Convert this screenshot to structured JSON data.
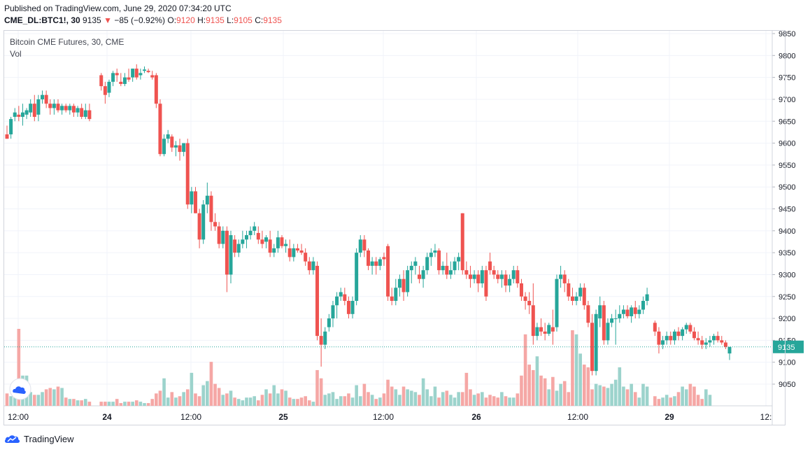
{
  "header": {
    "published": "Published on TradingView.com, June 29, 2020 07:34:20 UTC"
  },
  "quote": {
    "symbol": "CME_DL:BTC1!, 30",
    "last": "9135",
    "change": "−85 (−0.92%)",
    "o_label": "O:",
    "o": "9120",
    "h_label": "H:",
    "h": "9135",
    "l_label": "L:",
    "l": "9105",
    "c_label": "C:",
    "c": "9135"
  },
  "legend": {
    "title": "Bitcoin CME Futures, 30, CME",
    "volume": "Vol"
  },
  "footer": {
    "brand": "TradingView",
    "logo_icon": "tradingview-cloud-icon"
  },
  "colors": {
    "up": "#26a69a",
    "down": "#ef5350",
    "up_vol": "#9cd3cc",
    "down_vol": "#f5a7a5",
    "price_line": "#26a69a"
  },
  "chart_data": {
    "type": "candlestick",
    "title": "Bitcoin CME Futures, 30, CME",
    "y_ticks": [
      9050,
      9100,
      9150,
      9200,
      9250,
      9300,
      9350,
      9400,
      9450,
      9500,
      9550,
      9600,
      9650,
      9700,
      9750,
      9800,
      9850
    ],
    "x_ticks": [
      "12:00",
      "24",
      "12:00",
      "25",
      "12:00",
      "26",
      "12:00",
      "29",
      "12:"
    ],
    "last_price": "9135",
    "grid": true,
    "candles": [
      [
        9620,
        9640,
        9610,
        9610
      ],
      [
        9620,
        9660,
        9610,
        9655
      ],
      [
        9660,
        9680,
        9650,
        9670
      ],
      [
        9665,
        9685,
        9650,
        9660
      ],
      [
        9660,
        9690,
        9640,
        9670
      ],
      [
        9665,
        9680,
        9655,
        9675
      ],
      [
        9670,
        9700,
        9660,
        9690
      ],
      [
        9690,
        9710,
        9650,
        9660
      ],
      [
        9665,
        9710,
        9650,
        9700
      ],
      [
        9700,
        9720,
        9690,
        9710
      ],
      [
        9710,
        9720,
        9680,
        9690
      ],
      [
        9690,
        9700,
        9665,
        9680
      ],
      [
        9680,
        9700,
        9665,
        9690
      ],
      [
        9690,
        9700,
        9670,
        9675
      ],
      [
        9675,
        9690,
        9665,
        9685
      ],
      [
        9685,
        9690,
        9670,
        9675
      ],
      [
        9675,
        9690,
        9665,
        9685
      ],
      [
        9685,
        9690,
        9660,
        9670
      ],
      [
        9670,
        9685,
        9660,
        9680
      ],
      [
        9680,
        9690,
        9655,
        9660
      ],
      [
        9660,
        9690,
        9655,
        9675
      ],
      [
        9675,
        9690,
        9650,
        9655
      ],
      [
        null,
        null,
        null,
        null
      ],
      [
        null,
        null,
        null,
        null
      ],
      [
        9755,
        9760,
        9720,
        9730
      ],
      [
        9730,
        9740,
        9690,
        9710
      ],
      [
        9715,
        9745,
        9705,
        9740
      ],
      [
        9740,
        9765,
        9730,
        9760
      ],
      [
        9760,
        9770,
        9740,
        9755
      ],
      [
        9740,
        9760,
        9730,
        9735
      ],
      [
        9735,
        9760,
        9730,
        9750
      ],
      [
        9750,
        9770,
        9740,
        9745
      ],
      [
        9750,
        9770,
        9740,
        9770
      ],
      [
        9770,
        9780,
        9745,
        9750
      ],
      [
        9755,
        9770,
        9745,
        9760
      ],
      [
        9765,
        9775,
        9760,
        9768
      ],
      [
        9765,
        9770,
        9760,
        9762
      ],
      [
        9755,
        9765,
        9745,
        9750
      ],
      [
        9755,
        9760,
        9680,
        9690
      ],
      [
        9690,
        9700,
        9570,
        9575
      ],
      [
        9575,
        9620,
        9570,
        9610
      ],
      [
        9610,
        9630,
        9600,
        9620
      ],
      [
        9615,
        9620,
        9580,
        9590
      ],
      [
        9590,
        9605,
        9570,
        9595
      ],
      [
        9595,
        9610,
        9560,
        9580
      ],
      [
        9580,
        9600,
        9570,
        9600
      ],
      [
        9600,
        9610,
        9450,
        9460
      ],
      [
        9460,
        9500,
        9440,
        9490
      ],
      [
        9490,
        9500,
        9440,
        9440
      ],
      [
        9440,
        9450,
        9360,
        9380
      ],
      [
        9380,
        9470,
        9370,
        9460
      ],
      [
        9460,
        9510,
        9440,
        9480
      ],
      [
        9480,
        9490,
        9400,
        9420
      ],
      [
        9420,
        9440,
        9400,
        9410
      ],
      [
        9410,
        9420,
        9360,
        9370
      ],
      [
        9370,
        9410,
        9360,
        9400
      ],
      [
        9400,
        9410,
        9260,
        9300
      ],
      [
        9300,
        9400,
        9280,
        9390
      ],
      [
        9380,
        9390,
        9340,
        9350
      ],
      [
        9350,
        9380,
        9340,
        9370
      ],
      [
        9370,
        9400,
        9360,
        9380
      ],
      [
        9380,
        9400,
        9360,
        9390
      ],
      [
        9390,
        9410,
        9380,
        9400
      ],
      [
        9400,
        9420,
        9390,
        9410
      ],
      [
        9395,
        9410,
        9370,
        9380
      ],
      [
        9380,
        9400,
        9360,
        9370
      ],
      [
        9375,
        9390,
        9360,
        9385
      ],
      [
        9380,
        9400,
        9340,
        9350
      ],
      [
        9350,
        9370,
        9340,
        9360
      ],
      [
        9360,
        9400,
        9350,
        9385
      ],
      [
        9385,
        9390,
        9360,
        9365
      ],
      [
        9365,
        9380,
        9350,
        9370
      ],
      [
        9360,
        9380,
        9330,
        9340
      ],
      [
        9340,
        9370,
        9330,
        9360
      ],
      [
        9360,
        9370,
        9350,
        9355
      ],
      [
        9355,
        9370,
        9345,
        9350
      ],
      [
        9350,
        9360,
        9320,
        9330
      ],
      [
        9330,
        9340,
        9300,
        9310
      ],
      [
        9310,
        9340,
        9300,
        9330
      ],
      [
        9320,
        9330,
        9150,
        9160
      ],
      [
        9160,
        9200,
        9090,
        9140
      ],
      [
        9140,
        9180,
        9130,
        9170
      ],
      [
        9180,
        9210,
        9170,
        9200
      ],
      [
        9200,
        9240,
        9180,
        9230
      ],
      [
        9230,
        9260,
        9200,
        9250
      ],
      [
        9250,
        9270,
        9240,
        9260
      ],
      [
        9255,
        9270,
        9230,
        9240
      ],
      [
        9240,
        9250,
        9200,
        9210
      ],
      [
        9210,
        9250,
        9200,
        9240
      ],
      [
        9240,
        9360,
        9230,
        9350
      ],
      [
        9350,
        9390,
        9340,
        9380
      ],
      [
        9380,
        9390,
        9340,
        9355
      ],
      [
        9355,
        9360,
        9310,
        9320
      ],
      [
        9320,
        9340,
        9300,
        9330
      ],
      [
        9330,
        9340,
        9300,
        9320
      ],
      [
        9320,
        9340,
        9310,
        9335
      ],
      [
        9340,
        9350,
        9320,
        9335
      ],
      [
        9365,
        9370,
        9240,
        9250
      ],
      [
        9250,
        9270,
        9230,
        9240
      ],
      [
        9240,
        9290,
        9230,
        9270
      ],
      [
        9270,
        9300,
        9250,
        9290
      ],
      [
        9290,
        9310,
        9240,
        9260
      ],
      [
        9260,
        9320,
        9250,
        9310
      ],
      [
        9310,
        9330,
        9280,
        9320
      ],
      [
        9320,
        9340,
        9300,
        9330
      ],
      [
        9300,
        9320,
        9280,
        9290
      ],
      [
        9290,
        9320,
        9270,
        9310
      ],
      [
        9310,
        9350,
        9300,
        9340
      ],
      [
        9340,
        9360,
        9320,
        9350
      ],
      [
        9350,
        9370,
        9340,
        9355
      ],
      [
        9355,
        9360,
        9300,
        9310
      ],
      [
        9310,
        9330,
        9300,
        9320
      ],
      [
        9320,
        9350,
        9290,
        9300
      ],
      [
        9300,
        9330,
        9290,
        9310
      ],
      [
        9310,
        9340,
        9300,
        9330
      ],
      [
        9330,
        9350,
        9310,
        9340
      ],
      [
        9440,
        9440,
        9300,
        9310
      ],
      [
        9310,
        9330,
        9290,
        9300
      ],
      [
        9300,
        9320,
        9270,
        9290
      ],
      [
        9290,
        9310,
        9280,
        9300
      ],
      [
        9300,
        9310,
        9260,
        9280
      ],
      [
        9280,
        9320,
        9270,
        9310
      ],
      [
        9310,
        9320,
        9240,
        9250
      ],
      [
        9330,
        9350,
        9300,
        9310
      ],
      [
        9310,
        9320,
        9290,
        9300
      ],
      [
        9300,
        9310,
        9280,
        9290
      ],
      [
        9290,
        9310,
        9270,
        9300
      ],
      [
        9300,
        9310,
        9260,
        9275
      ],
      [
        9275,
        9300,
        9260,
        9290
      ],
      [
        9290,
        9320,
        9280,
        9310
      ],
      [
        9310,
        9320,
        9270,
        9280
      ],
      [
        9280,
        9290,
        9240,
        9250
      ],
      [
        9250,
        9260,
        9220,
        9240
      ],
      [
        9240,
        9260,
        9210,
        9230
      ],
      [
        9230,
        9280,
        9140,
        9160
      ],
      [
        9160,
        9190,
        9150,
        9180
      ],
      [
        9180,
        9200,
        9160,
        9170
      ],
      [
        9170,
        9190,
        9150,
        9165
      ],
      [
        9165,
        9190,
        9160,
        9185
      ],
      [
        9180,
        9220,
        9140,
        9170
      ],
      [
        9180,
        9300,
        9170,
        9290
      ],
      [
        9290,
        9320,
        9270,
        9300
      ],
      [
        9300,
        9310,
        9260,
        9280
      ],
      [
        9280,
        9290,
        9240,
        9250
      ],
      [
        9250,
        9270,
        9230,
        9240
      ],
      [
        9240,
        9260,
        9230,
        9250
      ],
      [
        9250,
        9280,
        9240,
        9270
      ],
      [
        9270,
        9280,
        9220,
        9230
      ],
      [
        9230,
        9240,
        9180,
        9190
      ],
      [
        9190,
        9210,
        9070,
        9080
      ],
      [
        9080,
        9220,
        9070,
        9210
      ],
      [
        9200,
        9250,
        9180,
        9230
      ],
      [
        9230,
        9240,
        9140,
        9150
      ],
      [
        9150,
        9200,
        9140,
        9190
      ],
      [
        9190,
        9210,
        9180,
        9200
      ],
      [
        9200,
        9220,
        9140,
        9200
      ],
      [
        9200,
        9230,
        9190,
        9210
      ],
      [
        9210,
        9230,
        9200,
        9220
      ],
      [
        9220,
        9230,
        9200,
        9205
      ],
      [
        9205,
        9230,
        9190,
        9225
      ],
      [
        9225,
        9240,
        9200,
        9210
      ],
      [
        9210,
        9230,
        9200,
        9220
      ],
      [
        9220,
        9250,
        9210,
        9240
      ],
      [
        9240,
        9270,
        9230,
        9255
      ],
      [
        null,
        null,
        null,
        null
      ],
      [
        9190,
        9195,
        9160,
        9170
      ],
      [
        9170,
        9180,
        9120,
        9140
      ],
      [
        9140,
        9160,
        9130,
        9150
      ],
      [
        9150,
        9170,
        9140,
        9160
      ],
      [
        9160,
        9170,
        9140,
        9150
      ],
      [
        9150,
        9175,
        9140,
        9170
      ],
      [
        9170,
        9180,
        9150,
        9160
      ],
      [
        9160,
        9180,
        9150,
        9175
      ],
      [
        9175,
        9190,
        9165,
        9185
      ],
      [
        9185,
        9190,
        9165,
        9170
      ],
      [
        9170,
        9180,
        9150,
        9155
      ],
      [
        9155,
        9170,
        9140,
        9150
      ],
      [
        9150,
        9160,
        9130,
        9140
      ],
      [
        9140,
        9155,
        9130,
        9145
      ],
      [
        9145,
        9160,
        9135,
        9150
      ],
      [
        9150,
        9165,
        9140,
        9160
      ],
      [
        9160,
        9170,
        9145,
        9150
      ],
      [
        9150,
        9160,
        9140,
        9145
      ],
      [
        9145,
        9150,
        9130,
        9135
      ],
      [
        9120,
        9135,
        9105,
        9135
      ]
    ],
    "volume": [
      9,
      7,
      8,
      56,
      22,
      22,
      10,
      8,
      8,
      10,
      12,
      13,
      12,
      14,
      13,
      6,
      5,
      5,
      4,
      4,
      5,
      3,
      0,
      0,
      3,
      3,
      3,
      3,
      5,
      2,
      3,
      3,
      3,
      4,
      3,
      2,
      2,
      5,
      9,
      11,
      20,
      6,
      10,
      6,
      7,
      10,
      12,
      24,
      9,
      7,
      15,
      18,
      32,
      16,
      13,
      8,
      9,
      11,
      6,
      5,
      4,
      6,
      6,
      7,
      4,
      8,
      12,
      9,
      15,
      9,
      12,
      11,
      6,
      5,
      5,
      6,
      7,
      4,
      3,
      26,
      20,
      8,
      9,
      10,
      5,
      7,
      7,
      9,
      6,
      15,
      7,
      16,
      10,
      8,
      5,
      6,
      9,
      19,
      14,
      12,
      8,
      14,
      12,
      11,
      10,
      8,
      20,
      12,
      7,
      14,
      6,
      10,
      11,
      8,
      6,
      10,
      10,
      24,
      12,
      8,
      9,
      10,
      6,
      8,
      7,
      6,
      10,
      7,
      6,
      6,
      9,
      22,
      52,
      30,
      26,
      36,
      22,
      20,
      12,
      21,
      11,
      16,
      18,
      10,
      55,
      52,
      38,
      30,
      28,
      12,
      16,
      15,
      14,
      13,
      16,
      19,
      28,
      14,
      12,
      16,
      10,
      6,
      16,
      14,
      13,
      7,
      5,
      6,
      8,
      6,
      7,
      10,
      14,
      12,
      16,
      14,
      8,
      5,
      12,
      8
    ]
  }
}
